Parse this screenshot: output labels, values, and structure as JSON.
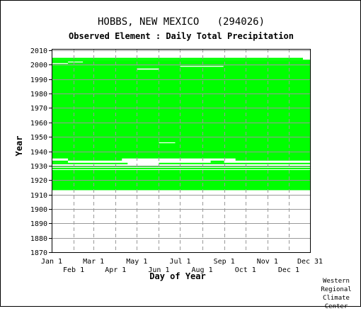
{
  "header": {
    "station": "HOBBS, NEW MEXICO",
    "station_id": "(294026)",
    "subtitle": "Observed Element : Daily Total Precipitation"
  },
  "credit": [
    "Western",
    "Regional",
    "Climate",
    "Center"
  ],
  "colors": {
    "coverage": "#00ff00",
    "grid": "#999999",
    "axis": "#000000",
    "background": "#ffffff"
  },
  "chart_data": {
    "type": "heatmap",
    "title": "HOBBS, NEW MEXICO (294026)",
    "subtitle": "Observed Element : Daily Total Precipitation",
    "xlabel": "Day of Year",
    "ylabel": "Year",
    "xlim": [
      1,
      365
    ],
    "ylim": [
      1870,
      2011
    ],
    "grid": true,
    "x_ticks_upper": [
      {
        "label": "Jan 1",
        "day": 1
      },
      {
        "label": "Mar 1",
        "day": 60
      },
      {
        "label": "May 1",
        "day": 121
      },
      {
        "label": "Jul 1",
        "day": 182
      },
      {
        "label": "Sep 1",
        "day": 244
      },
      {
        "label": "Nov 1",
        "day": 305
      },
      {
        "label": "Dec 31",
        "day": 365
      }
    ],
    "x_ticks_lower": [
      {
        "label": "Feb 1",
        "day": 32
      },
      {
        "label": "Apr 1",
        "day": 91
      },
      {
        "label": "Jun 1",
        "day": 152
      },
      {
        "label": "Aug 1",
        "day": 213
      },
      {
        "label": "Oct 1",
        "day": 274
      },
      {
        "label": "Dec 1",
        "day": 335
      }
    ],
    "y_ticks": [
      1870,
      1880,
      1890,
      1900,
      1910,
      1920,
      1930,
      1940,
      1950,
      1960,
      1970,
      1980,
      1990,
      2000,
      2010
    ],
    "series": [
      {
        "values": [
          {
            "year_from": 1913,
            "year_to": 1927,
            "day_from": 1,
            "day_to": 365
          },
          {
            "year_from": 1927.5,
            "year_to": 1928.5,
            "day_from": 1,
            "day_to": 365
          },
          {
            "year_from": 1929,
            "year_to": 1930,
            "day_from": 1,
            "day_to": 365
          },
          {
            "year_from": 1931,
            "year_to": 1932,
            "day_from": 1,
            "day_to": 108
          },
          {
            "year_from": 1931,
            "year_to": 1932,
            "day_from": 152,
            "day_to": 365
          },
          {
            "year_from": 1932,
            "year_to": 1933.5,
            "day_from": 1,
            "day_to": 24
          },
          {
            "year_from": 1932,
            "year_to": 1933.5,
            "day_from": 225,
            "day_to": 244
          },
          {
            "year_from": 1933.5,
            "year_to": 1935.5,
            "day_from": 24,
            "day_to": 100
          },
          {
            "year_from": 1933.5,
            "year_to": 1935.5,
            "day_from": 260,
            "day_to": 365
          },
          {
            "year_from": 1935,
            "year_to": 1999.5,
            "day_from": 1,
            "day_to": 365
          },
          {
            "year_from": 1999.5,
            "year_to": 2003.5,
            "day_from": 1,
            "day_to": 365
          },
          {
            "year_from": 2003.5,
            "year_to": 2004.8,
            "day_from": 1,
            "day_to": 355
          }
        ]
      }
    ],
    "gaps": [
      {
        "year_from": 1945.6,
        "year_to": 1946.2,
        "day_from": 152,
        "day_to": 175
      },
      {
        "year_from": 1996.6,
        "year_to": 1997.4,
        "day_from": 121,
        "day_to": 152
      },
      {
        "year_from": 1998.6,
        "year_to": 1999.2,
        "day_from": 182,
        "day_to": 243
      },
      {
        "year_from": 2000.6,
        "year_to": 2001.2,
        "day_from": 1,
        "day_to": 24
      },
      {
        "year_from": 2001.6,
        "year_to": 2002.2,
        "day_from": 24,
        "day_to": 45
      }
    ]
  }
}
